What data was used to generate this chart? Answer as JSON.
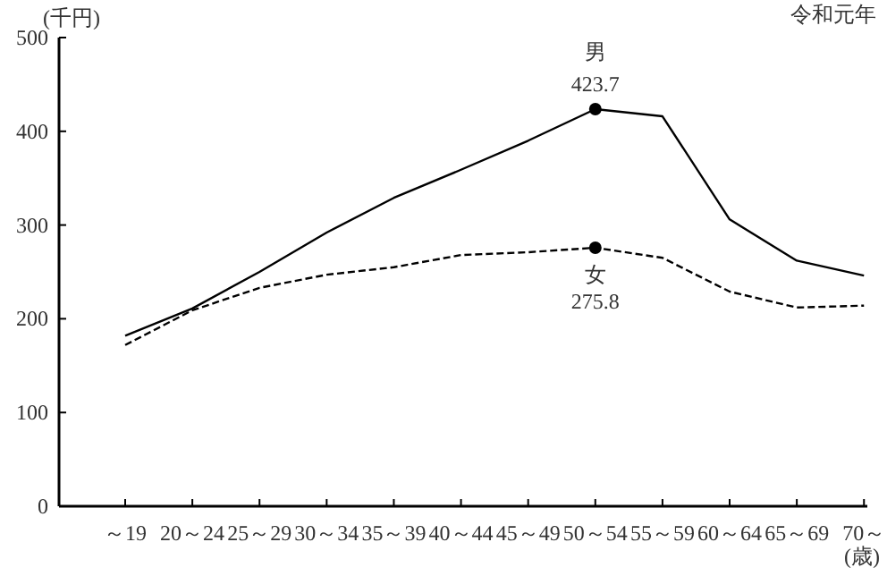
{
  "chart_data": {
    "type": "line",
    "ylabel": "(千円)",
    "xlabel": "(歳)",
    "annotations": [
      "令和元年"
    ],
    "categories": [
      "～19",
      "20～24",
      "25～29",
      "30～34",
      "35～39",
      "40～44",
      "45～49",
      "50～54",
      "55～59",
      "60～64",
      "65～69",
      "70～"
    ],
    "series": [
      {
        "name": "男",
        "color": "#000000",
        "line_style": "solid",
        "values": [
          182,
          211,
          250,
          292,
          329,
          359,
          390,
          423.7,
          416,
          306,
          262,
          246
        ],
        "value_labels": [
          null,
          null,
          null,
          null,
          null,
          null,
          null,
          "423.7",
          null,
          null,
          null,
          null
        ]
      },
      {
        "name": "女",
        "color": "#000000",
        "line_style": "dashed",
        "values": [
          172,
          209,
          233,
          247,
          255,
          268,
          271,
          275.8,
          265,
          229,
          212,
          214
        ],
        "value_labels": [
          null,
          null,
          null,
          null,
          null,
          null,
          null,
          "275.8",
          null,
          null,
          null,
          null
        ]
      }
    ],
    "ylim": [
      0,
      500
    ],
    "yticks": [
      0,
      100,
      200,
      300,
      400,
      500
    ],
    "grid": false,
    "legend": false
  }
}
